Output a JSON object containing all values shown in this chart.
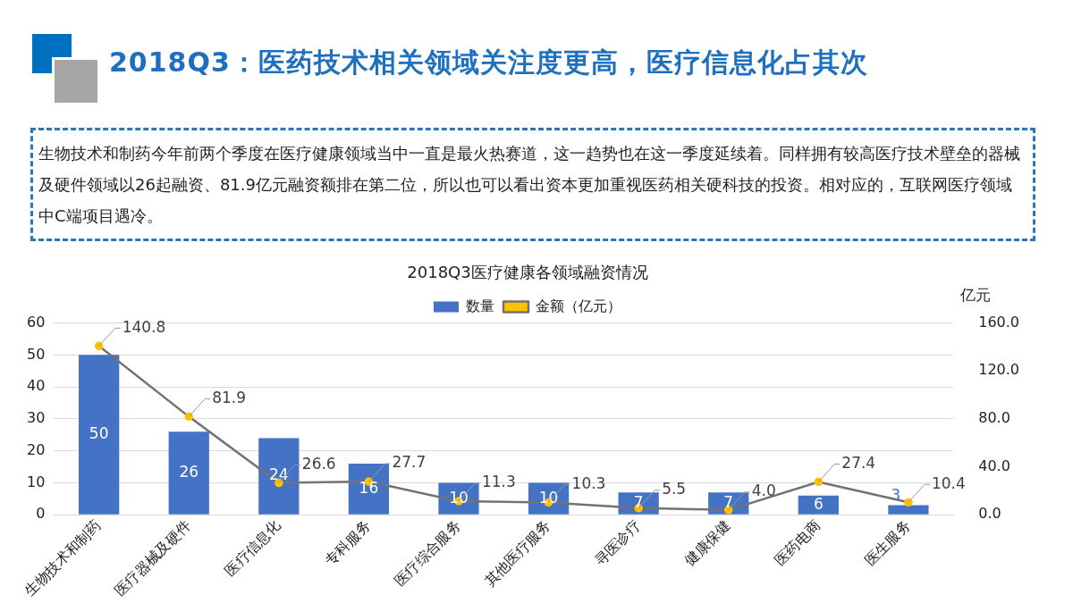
{
  "chart_data": {
    "type": "bar",
    "title": "2018Q3医疗健康各领域融资情况",
    "annotations": [
      "2018Q3：医药技术相关领域关注度更高，医疗信息化占其次",
      "生物技术和制药今年前两个季度在医疗健康领域当中一直是最火热赛道，这一趋势也在这一季度延续着。同样拥有较高医疗技术壁垒的器械及硬件领域以26起融资、81.9亿元融资额排在第二位，所以也可以看出资本更加重视医药相关硬科技的投资。相对应的，互联网医疗领域中C端项目遇冷。"
    ],
    "categories": [
      "生物技术和制药",
      "医疗器械及硬件",
      "医疗信息化",
      "专科服务",
      "医疗综合服务",
      "其他医疗服务",
      "寻医诊疗",
      "健康保健",
      "医药电商",
      "医生服务"
    ],
    "series": [
      {
        "name": "数量",
        "color": "#4472c4",
        "values": [
          50,
          26,
          24,
          16,
          10,
          10,
          7,
          7,
          6,
          3
        ]
      },
      {
        "name": "金额（亿元）",
        "type": "line",
        "axis": "y2",
        "color": "#767171",
        "colors": [
          "#ffc000",
          "#ffc000",
          "#ffc000",
          "#ffc000",
          "#ffc000",
          "#ffc000",
          "#ffc000",
          "#ffc000",
          "#ffc000",
          "#ffc000"
        ],
        "marker": "circle",
        "values": [
          140.8,
          81.9,
          26.6,
          27.7,
          11.3,
          10.3,
          5.5,
          4.0,
          27.4,
          10.4
        ],
        "value_labels": [
          "140.8",
          "81.9",
          "26.6",
          "27.7",
          "11.3",
          "10.3",
          "5.5",
          "4.0",
          "27.4",
          "10.4"
        ]
      }
    ],
    "data_labels": true,
    "ylim": [
      0,
      60
    ],
    "yticks": [
      0,
      10,
      20,
      30,
      40,
      50,
      60
    ],
    "y2label": "亿元",
    "y2lim": [
      0,
      160
    ],
    "y2ticks": [
      {
        "value": 0,
        "label": "0.0"
      },
      {
        "value": 40,
        "label": "40.0"
      },
      {
        "value": 80,
        "label": "80.0"
      },
      {
        "value": 120,
        "label": "120.0"
      },
      {
        "value": 160,
        "label": "160.0"
      }
    ],
    "grid": "y",
    "legend": "top"
  }
}
